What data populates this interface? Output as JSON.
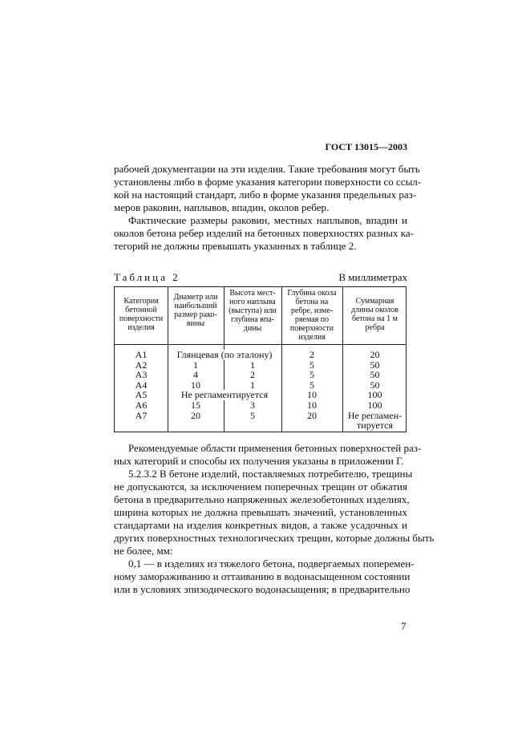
{
  "header": "ГОСТ 13015—2003",
  "para1": [
    "рабочей документации на эти изделия. Такие требования могут быть",
    "установлены либо в форме указания категории поверхности со ссыл-",
    "кой на настоящий стандарт, либо в форме указания предельных раз-",
    "меров раковин, наплывов, впадин, околов ребер."
  ],
  "para2": [
    "Фактические размеры раковин, местных наплывов, впадин и",
    "околов бетона ребер изделий на бетонных поверхностях разных ка-",
    "тегорий не должны превышать указанных в таблице 2."
  ],
  "table": {
    "title": "Таблица 2",
    "unit": "В миллиметрах",
    "headers": [
      "Категория\nбетонной\nповерхности\nизделия",
      "Диаметр или\nнаибольший\nразмер рако-\nвины",
      "Высота мест-\nного наплыва\n(выступа) или\nглубина впа-\nдины",
      "Глубина окола\nбетона на\nребре, изме-\nряемая по\nповерхности\nизделия",
      "Суммарная\nдлины околов\nбетона на 1 м\nребра"
    ],
    "rows": [
      [
        "А1",
        "Глянцевая (по эталону)",
        "",
        "2",
        "20"
      ],
      [
        "А2",
        "1",
        "1",
        "5",
        "50"
      ],
      [
        "А3",
        "4",
        "2",
        "5",
        "50"
      ],
      [
        "А4",
        "10",
        "1",
        "5",
        "50"
      ],
      [
        "А5",
        "Не регламентируется",
        "",
        "10",
        "100"
      ],
      [
        "А6",
        "15",
        "3",
        "10",
        "100"
      ],
      [
        "А7",
        "20",
        "5",
        "20",
        "Не регламен-\nтируется"
      ]
    ]
  },
  "para3": [
    "Рекомендуемые области применения бетонных поверхностей раз-",
    "ных категорий и способы их получения указаны в приложении Г."
  ],
  "para4": [
    "5.2.3.2 В бетоне изделий, поставляемых потребителю, трещины",
    "не допускаются, за исключением поперечных трещин от обжатия",
    "бетона в предварительно напряженных железобетонных изделиях,",
    "ширина которых не должна превышать значений, установленных",
    "стандартами на изделия конкретных видов, а также усадочных и",
    "других поверхностных технологических трещин, которые должны быть",
    "не более, мм:"
  ],
  "para5": [
    "0,1 — в изделиях из тяжелого бетона, подвергаемых поперемен-",
    "ному замораживанию и оттаиванию в водонасыщенном состоянии",
    "или в условиях эпизодического водонасыщения; в предварительно"
  ],
  "page_number": "7"
}
